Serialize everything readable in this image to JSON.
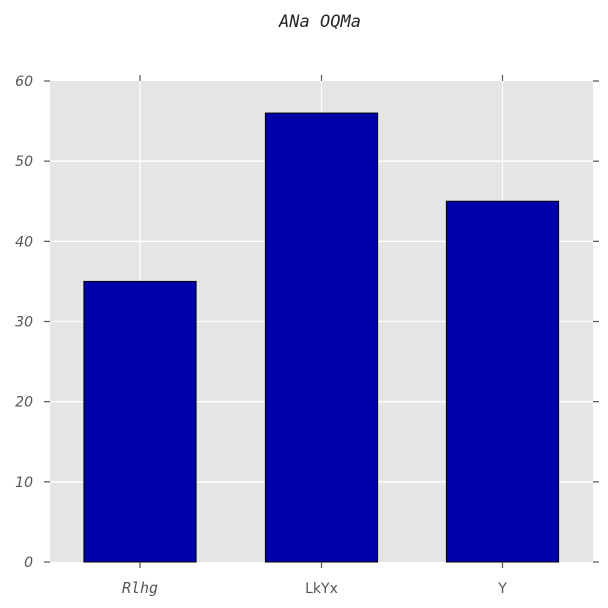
{
  "chart_data": {
    "type": "bar",
    "title": "ANa OQMa",
    "categories": [
      "Rlhg",
      "LkYx",
      "Y"
    ],
    "values": [
      35,
      56,
      45
    ],
    "xlabel": "",
    "ylabel": "",
    "ylim": [
      0,
      60
    ],
    "yticks": [
      "0",
      "10",
      "20",
      "30",
      "40",
      "50",
      "60"
    ],
    "grid": true,
    "colors": {
      "bar_fill": "#0000aa",
      "bar_edge": "#000000",
      "plot_bg": "#e5e5e5",
      "grid": "#ffffff",
      "tick": "#555555"
    }
  }
}
